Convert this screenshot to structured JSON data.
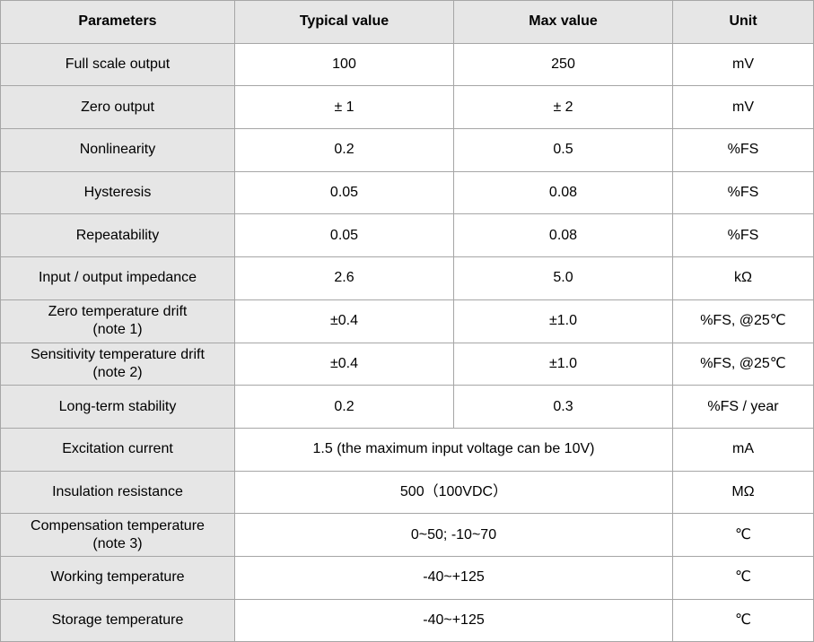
{
  "table": {
    "headers": [
      "Parameters",
      "Typical value",
      "Max value",
      "Unit"
    ],
    "rows": [
      {
        "parameter": "Full scale output",
        "typical": "100",
        "max": "250",
        "unit": "mV"
      },
      {
        "parameter": "Zero output",
        "typical": "± 1",
        "max": "± 2",
        "unit": "mV"
      },
      {
        "parameter": "Nonlinearity",
        "typical": "0.2",
        "max": "0.5",
        "unit": "%FS"
      },
      {
        "parameter": "Hysteresis",
        "typical": "0.05",
        "max": "0.08",
        "unit": "%FS"
      },
      {
        "parameter": "Repeatability",
        "typical": "0.05",
        "max": "0.08",
        "unit": "%FS"
      },
      {
        "parameter": "Input / output impedance",
        "typical": "2.6",
        "max": "5.0",
        "unit": "kΩ"
      },
      {
        "parameter_line1": "Zero temperature drift",
        "parameter_line2": "(note 1)",
        "typical": "±0.4",
        "max": "±1.0",
        "unit": "%FS, @25℃"
      },
      {
        "parameter_line1": "Sensitivity temperature drift",
        "parameter_line2": "(note 2)",
        "typical": "±0.4",
        "max": "±1.0",
        "unit": "%FS, @25℃"
      },
      {
        "parameter": "Long-term stability",
        "typical": "0.2",
        "max": "0.3",
        "unit": "%FS / year"
      },
      {
        "parameter": "Excitation current",
        "value": "1.5 (the maximum input voltage can be 10V)",
        "unit": "mA"
      },
      {
        "parameter": "Insulation resistance",
        "value": "500（100VDC）",
        "unit": "MΩ"
      },
      {
        "parameter_line1": "Compensation temperature",
        "parameter_line2": "(note 3)",
        "value": "0~50; -10~70",
        "unit": "℃"
      },
      {
        "parameter": "Working temperature",
        "value": "-40~+125",
        "unit": "℃"
      },
      {
        "parameter": "Storage temperature",
        "value": "-40~+125",
        "unit": "℃"
      }
    ]
  }
}
